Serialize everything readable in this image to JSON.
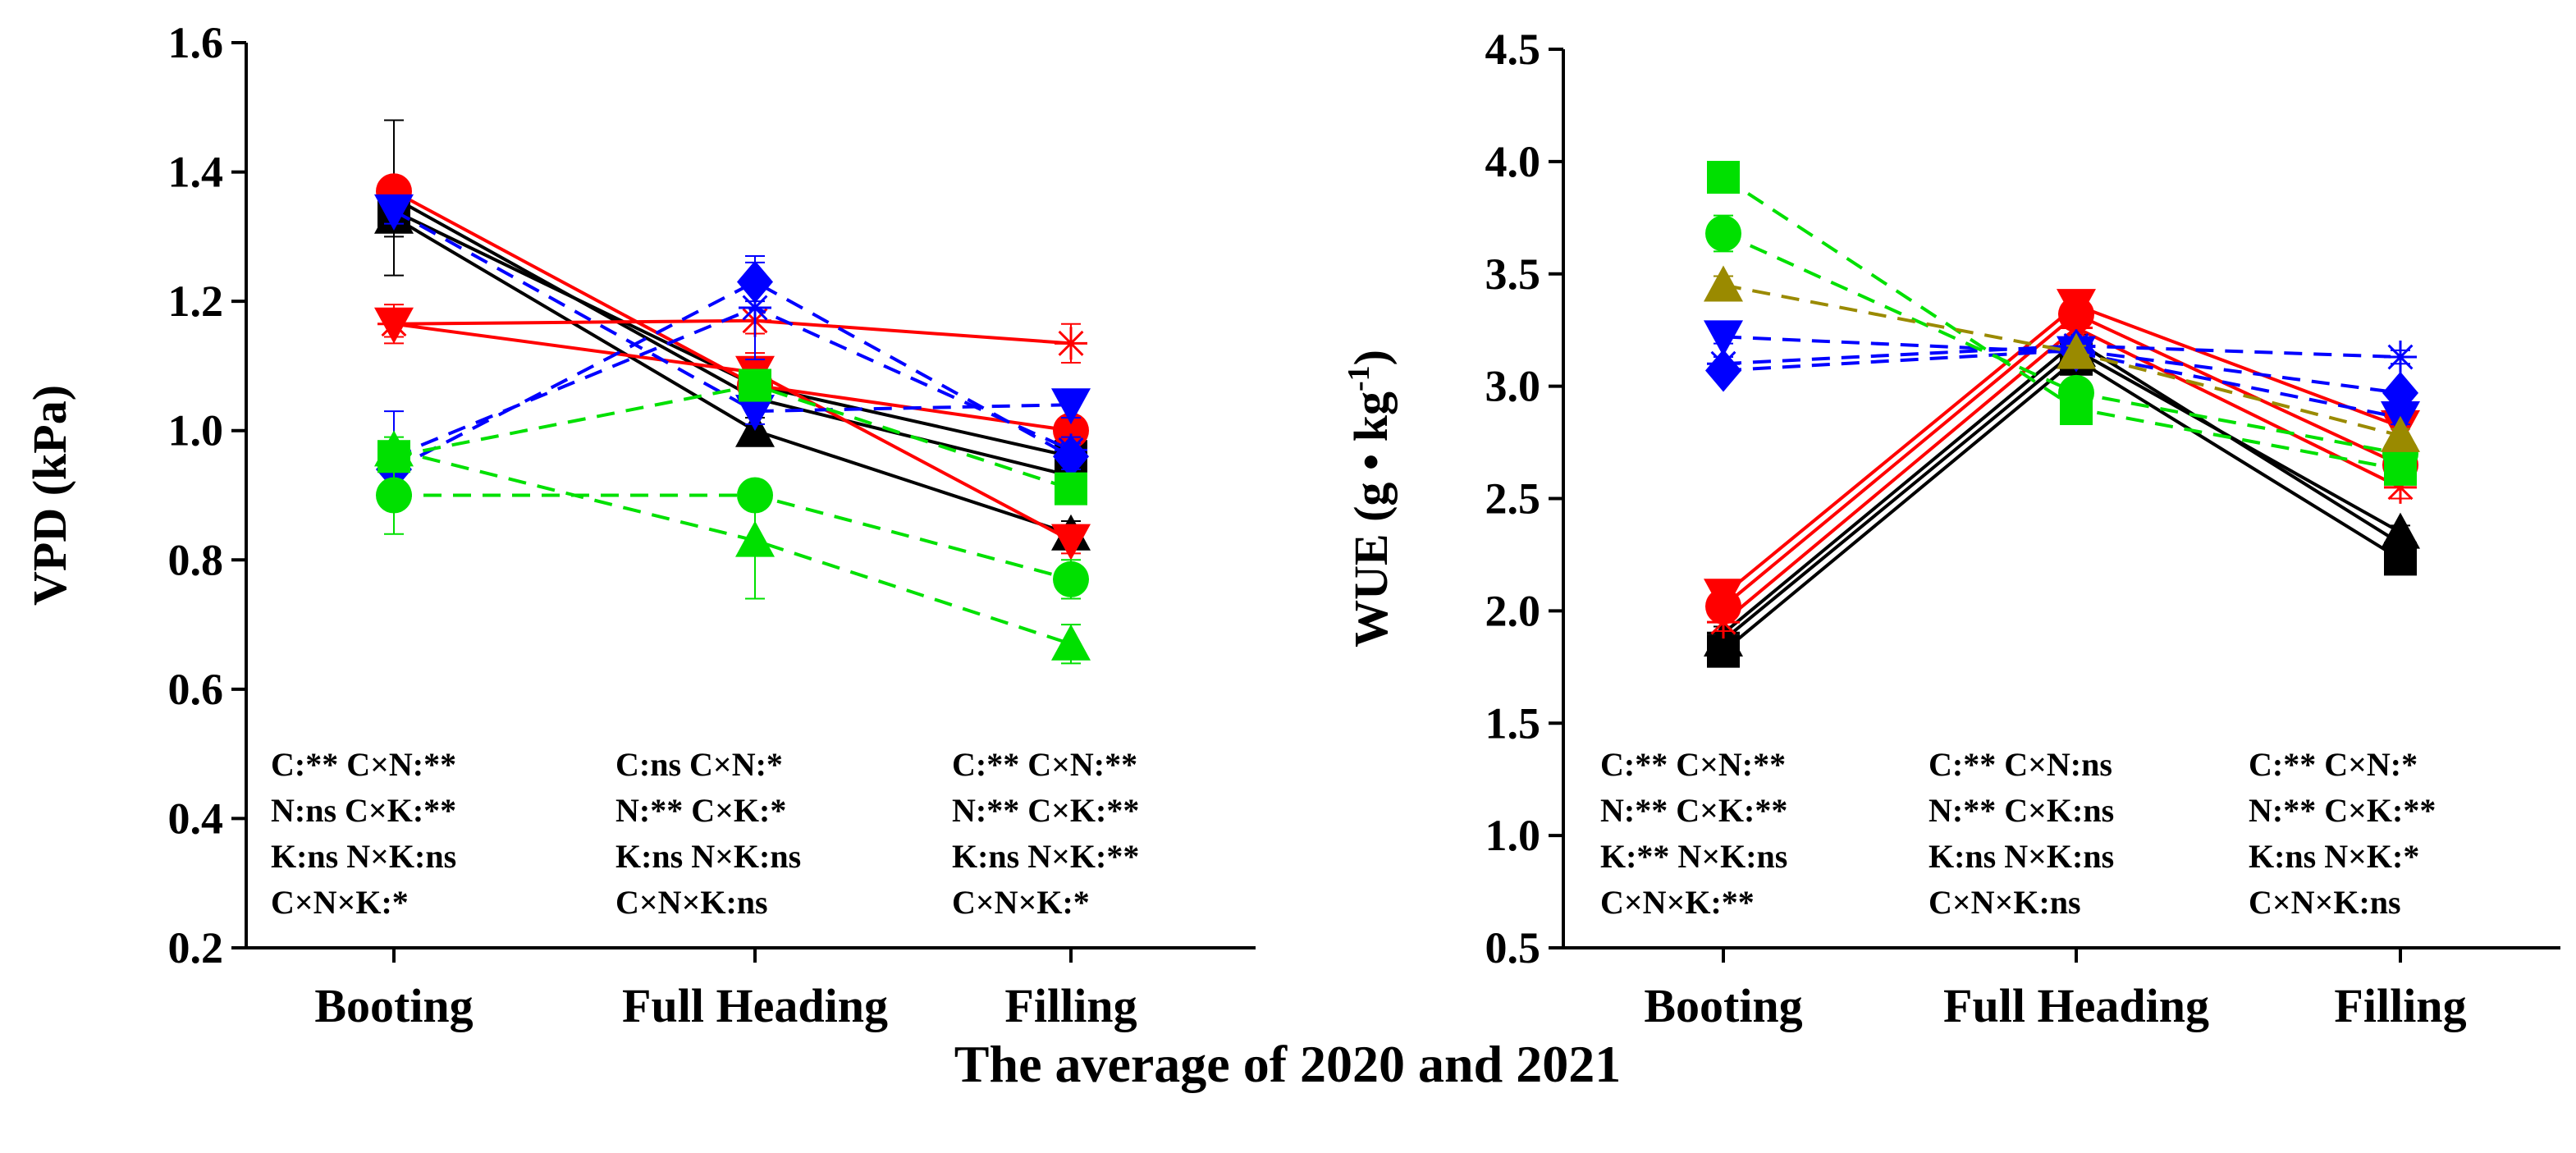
{
  "figure_title": "The average of 2020 and 2021",
  "colors": {
    "black": "#000000",
    "red": "#ff0000",
    "blue": "#0000ff",
    "green": "#00e000",
    "olive": "#9a8a00"
  },
  "chart_data": [
    {
      "id": "vpd",
      "type": "line",
      "ylabel": "VPD (kPa)",
      "categories": [
        "Booting",
        "Full Heading",
        "Filling"
      ],
      "ylim": [
        0.2,
        1.6
      ],
      "yticks": [
        0.2,
        0.4,
        0.6,
        0.8,
        1.0,
        1.2,
        1.4,
        1.6
      ],
      "ytick_labels": [
        "0.2",
        "0.4",
        "0.6",
        "0.8",
        "1.0",
        "1.2",
        "1.4",
        "1.6"
      ],
      "series": [
        {
          "name": "black-square",
          "color": "#000000",
          "dash": false,
          "marker": "square",
          "values": [
            1.34,
            1.07,
            0.96
          ],
          "err": [
            0.03,
            0.02,
            0.02
          ]
        },
        {
          "name": "black-triangle",
          "color": "#000000",
          "dash": false,
          "marker": "triangle",
          "values": [
            1.33,
            1.0,
            0.84
          ],
          "err": [
            0.03,
            0.02,
            0.02
          ]
        },
        {
          "name": "black-cross",
          "color": "#000000",
          "dash": false,
          "marker": "plus",
          "values": [
            1.36,
            1.05,
            0.93
          ],
          "err": [
            0.12,
            0.02,
            0.02
          ]
        },
        {
          "name": "red-circle",
          "color": "#ff0000",
          "dash": false,
          "marker": "circle",
          "values": [
            1.37,
            1.07,
            1.0
          ],
          "err": [
            0.02,
            0.02,
            0.02
          ]
        },
        {
          "name": "red-down-triangle",
          "color": "#ff0000",
          "dash": false,
          "marker": "tridown",
          "values": [
            1.165,
            1.09,
            0.83
          ],
          "err": [
            0.03,
            0.03,
            0.02
          ]
        },
        {
          "name": "red-star",
          "color": "#ff0000",
          "dash": false,
          "marker": "star",
          "values": [
            1.165,
            1.17,
            1.135
          ],
          "err": [
            0.02,
            0.02,
            0.03
          ]
        },
        {
          "name": "blue-diamond",
          "color": "#0000ff",
          "dash": true,
          "marker": "diamond",
          "values": [
            0.94,
            1.23,
            0.96
          ],
          "err": [
            0.02,
            0.03,
            0.02
          ]
        },
        {
          "name": "blue-down-triangle",
          "color": "#0000ff",
          "dash": true,
          "marker": "tridown",
          "values": [
            1.34,
            1.03,
            1.04
          ],
          "err": [
            0.02,
            0.02,
            0.02
          ]
        },
        {
          "name": "blue-star",
          "color": "#0000ff",
          "dash": true,
          "marker": "star",
          "values": [
            0.96,
            1.19,
            0.97
          ],
          "err": [
            0.07,
            0.08,
            0.02
          ]
        },
        {
          "name": "green-circle",
          "color": "#00e000",
          "dash": true,
          "marker": "circle",
          "values": [
            0.9,
            0.9,
            0.77
          ],
          "err": [
            0.06,
            0.02,
            0.03
          ]
        },
        {
          "name": "green-triangle",
          "color": "#00e000",
          "dash": true,
          "marker": "triangle",
          "values": [
            0.97,
            0.83,
            0.67
          ],
          "err": [
            0.02,
            0.09,
            0.03
          ]
        },
        {
          "name": "green-square",
          "color": "#00e000",
          "dash": true,
          "marker": "square",
          "values": [
            0.96,
            1.07,
            0.91
          ],
          "err": [
            0.02,
            0.02,
            0.02
          ]
        }
      ],
      "stats": [
        [
          "C:**  C×N:**",
          "N:ns  C×K:**",
          "K:ns  N×K:ns",
          "C×N×K:*"
        ],
        [
          "C:ns  C×N:*",
          "N:**  C×K:*",
          "K:ns  N×K:ns",
          "C×N×K:ns"
        ],
        [
          "C:**  C×N:**",
          "N:**  C×K:**",
          "K:ns  N×K:**",
          "C×N×K:*"
        ]
      ]
    },
    {
      "id": "wue",
      "type": "line",
      "ylabel": "WUE (g • kg",
      "ylabel_sup": "-1",
      "ylabel_end": ")",
      "categories": [
        "Booting",
        "Full Heading",
        "Filling"
      ],
      "ylim": [
        0.5,
        4.5
      ],
      "yticks": [
        0.5,
        1.0,
        1.5,
        2.0,
        2.5,
        3.0,
        3.5,
        4.0,
        4.5
      ],
      "ytick_labels": [
        "0.5",
        "1.0",
        "1.5",
        "2.0",
        "2.5",
        "3.0",
        "3.5",
        "4.0",
        "4.5"
      ],
      "series": [
        {
          "name": "black-square",
          "color": "#000000",
          "dash": false,
          "marker": "square",
          "values": [
            1.82,
            3.12,
            2.23
          ],
          "err": [
            0.03,
            0.03,
            0.03
          ]
        },
        {
          "name": "black-triangle",
          "color": "#000000",
          "dash": false,
          "marker": "triangle",
          "values": [
            1.87,
            3.16,
            2.35
          ],
          "err": [
            0.03,
            0.03,
            0.03
          ]
        },
        {
          "name": "black-cross",
          "color": "#000000",
          "dash": false,
          "marker": "plus",
          "values": [
            1.9,
            3.2,
            2.3
          ],
          "err": [
            0.03,
            0.03,
            0.03
          ]
        },
        {
          "name": "red-circle",
          "color": "#ff0000",
          "dash": false,
          "marker": "circle",
          "values": [
            2.02,
            3.32,
            2.65
          ],
          "err": [
            0.06,
            0.05,
            0.04
          ]
        },
        {
          "name": "red-down-triangle",
          "color": "#ff0000",
          "dash": false,
          "marker": "tridown",
          "values": [
            2.07,
            3.36,
            2.82
          ],
          "err": [
            0.04,
            0.04,
            0.04
          ]
        },
        {
          "name": "red-star",
          "color": "#ff0000",
          "dash": false,
          "marker": "star",
          "values": [
            1.95,
            3.26,
            2.55
          ],
          "err": [
            0.04,
            0.04,
            0.05
          ]
        },
        {
          "name": "blue-diamond",
          "color": "#0000ff",
          "dash": true,
          "marker": "diamond",
          "values": [
            3.07,
            3.16,
            2.97
          ],
          "err": [
            0.03,
            0.03,
            0.03
          ]
        },
        {
          "name": "blue-down-triangle",
          "color": "#0000ff",
          "dash": true,
          "marker": "tridown",
          "values": [
            3.22,
            3.15,
            2.86
          ],
          "err": [
            0.03,
            0.03,
            0.03
          ]
        },
        {
          "name": "blue-star",
          "color": "#0000ff",
          "dash": true,
          "marker": "star",
          "values": [
            3.1,
            3.18,
            3.13
          ],
          "err": [
            0.03,
            0.03,
            0.03
          ]
        },
        {
          "name": "green-circle",
          "color": "#00e000",
          "dash": true,
          "marker": "circle",
          "values": [
            3.68,
            2.97,
            2.7
          ],
          "err": [
            0.08,
            0.04,
            0.04
          ]
        },
        {
          "name": "green-square",
          "color": "#00e000",
          "dash": true,
          "marker": "square",
          "values": [
            3.93,
            2.9,
            2.63
          ],
          "err": [
            0.03,
            0.03,
            0.04
          ]
        },
        {
          "name": "olive-triangle",
          "color": "#9a8a00",
          "dash": true,
          "marker": "triangle",
          "values": [
            3.45,
            3.15,
            2.78
          ],
          "err": [
            0.04,
            0.03,
            0.03
          ]
        }
      ],
      "stats": [
        [
          "C:**  C×N:**",
          "N:**  C×K:**",
          "K:**  N×K:ns",
          "C×N×K:**"
        ],
        [
          "C:**  C×N:ns",
          "N:**  C×K:ns",
          "K:ns  N×K:ns",
          "C×N×K:ns"
        ],
        [
          "C:**  C×N:*",
          "N:**  C×K:**",
          "K:ns  N×K:*",
          "C×N×K:ns"
        ]
      ]
    }
  ]
}
